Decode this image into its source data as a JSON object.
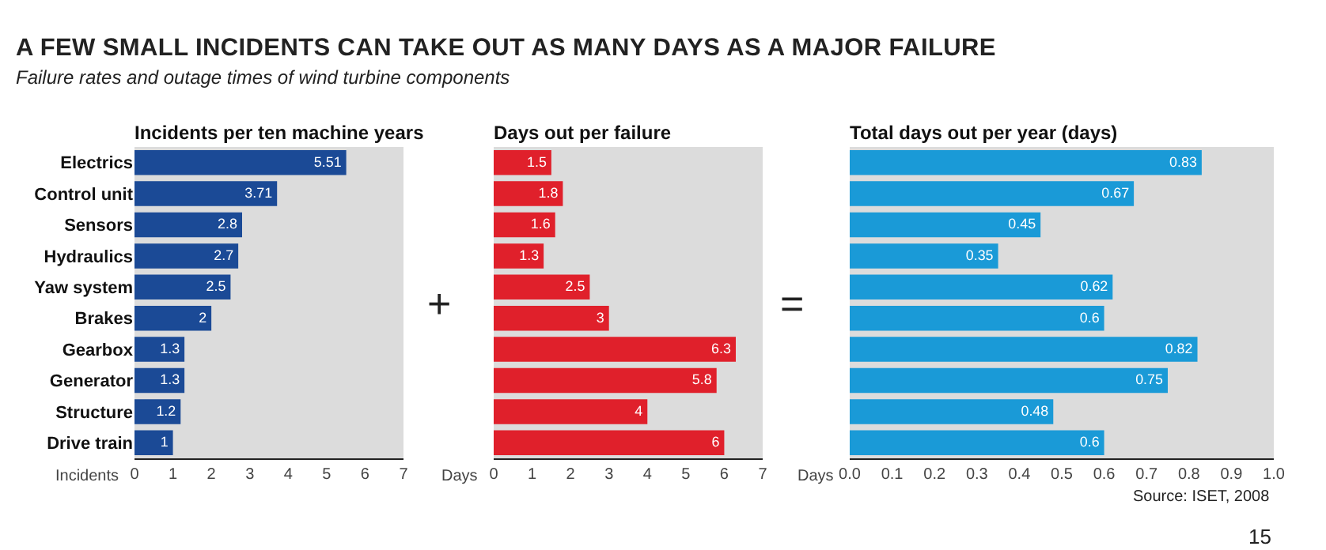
{
  "chart_data": [
    {
      "type": "bar",
      "orientation": "horizontal",
      "title": "Incidents per ten machine years",
      "xlabel": "Incidents",
      "categories": [
        "Electrics",
        "Control unit",
        "Sensors",
        "Hydraulics",
        "Yaw system",
        "Brakes",
        "Gearbox",
        "Generator",
        "Structure",
        "Drive train"
      ],
      "values": [
        5.51,
        3.71,
        2.8,
        2.7,
        2.5,
        2,
        1.3,
        1.3,
        1.2,
        1
      ],
      "color": "#1b4a96",
      "xlim": [
        0,
        7
      ],
      "xticks": [
        0,
        1,
        2,
        3,
        4,
        5,
        6,
        7
      ],
      "data_labels": true,
      "annotations": [
        "A FEW SMALL INCIDENTS CAN TAKE OUT AS MANY DAYS AS A MAJOR FAILURE",
        "Failure rates and outage times of wind turbine components",
        "+"
      ]
    },
    {
      "type": "bar",
      "orientation": "horizontal",
      "title": "Days out per failure",
      "xlabel": "Days",
      "categories": [
        null,
        null,
        null,
        null,
        null,
        null,
        null,
        null,
        null,
        null
      ],
      "values": [
        1.5,
        1.8,
        1.6,
        1.3,
        2.5,
        3,
        6.3,
        5.8,
        4,
        6
      ],
      "color": "#e0202b",
      "xlim": [
        0,
        7
      ],
      "xticks": [
        0,
        1,
        2,
        3,
        4,
        5,
        6,
        7
      ],
      "data_labels": true,
      "annotations": [
        "="
      ]
    },
    {
      "type": "bar",
      "orientation": "horizontal",
      "title": "Total days out per year (days)",
      "xlabel": "Days",
      "categories": [
        null,
        null,
        null,
        null,
        null,
        null,
        null,
        null,
        null,
        null
      ],
      "values": [
        0.83,
        0.67,
        0.45,
        0.35,
        0.62,
        0.6,
        0.82,
        0.75,
        0.48,
        0.6
      ],
      "color": "#1a9ad7",
      "xlim": [
        0,
        1
      ],
      "xticks": [
        {
          "value": 0,
          "label": "0.0"
        },
        0.1,
        0.2,
        0.3,
        0.4,
        0.5,
        0.6,
        0.7,
        0.8,
        0.9,
        {
          "value": 1,
          "label": "1.0"
        }
      ],
      "data_labels": true,
      "annotations": [
        "Source: ISET, 2008",
        "15"
      ]
    }
  ]
}
